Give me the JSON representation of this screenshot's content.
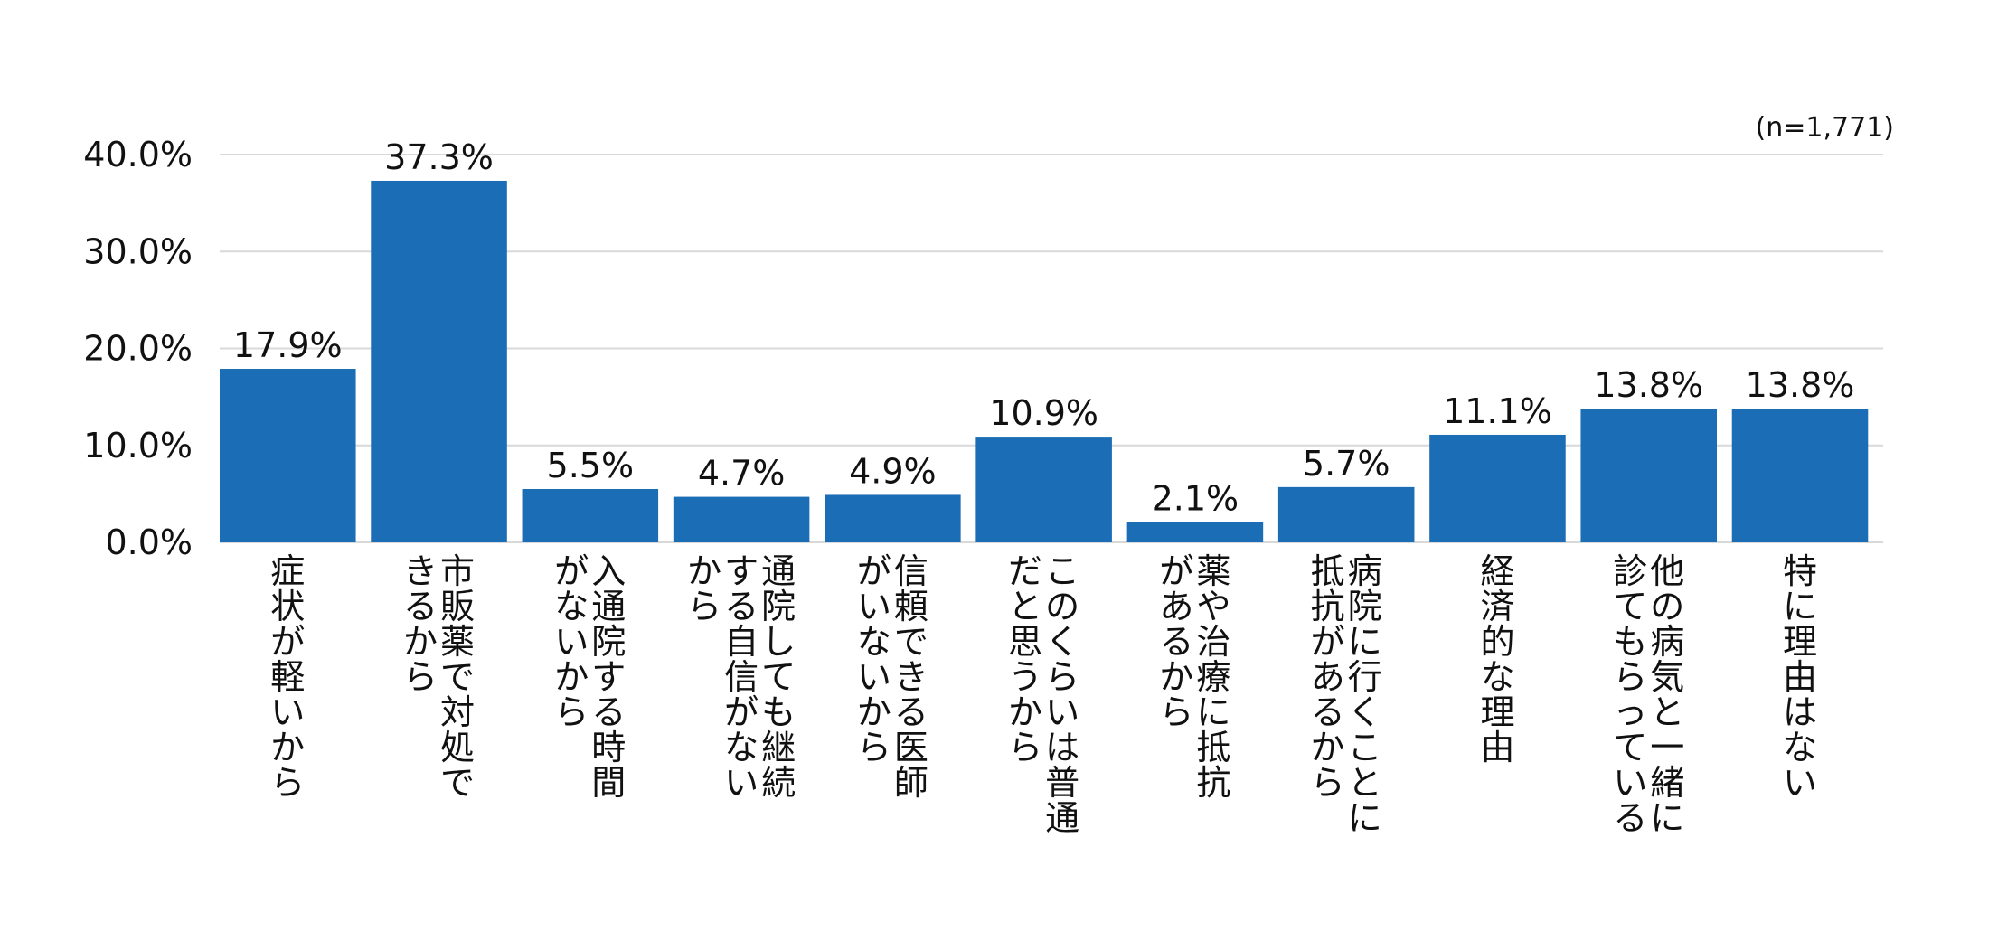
{
  "chart_data": {
    "type": "bar",
    "note": "(n=1,771)",
    "categories": [
      "症状が軽いから",
      "市販薬で対処できるから",
      "入通院する時間がないから",
      "通院しても継続する自信がないから",
      "信頼できる医師がいないから",
      "このくらいは普通だと思うから",
      "薬や治療に抵抗があるから",
      "病院に行くことに抵抗があるから",
      "経済的な理由",
      "他の病気と一緒に診てもらっている",
      "特に理由はない"
    ],
    "category_columns": [
      [
        "症状が軽いから"
      ],
      [
        "市販薬で対処で",
        "きるから"
      ],
      [
        "入通院する時間",
        "がないから"
      ],
      [
        "通院しても継続",
        "する自信がない",
        "から"
      ],
      [
        "信頼できる医師",
        "がいないから"
      ],
      [
        "このくらいは普通",
        "だと思うから"
      ],
      [
        "薬や治療に抵抗",
        "があるから"
      ],
      [
        "病院に行くことに",
        "抵抗があるから"
      ],
      [
        "経済的な理由"
      ],
      [
        "他の病気と一緒に",
        "診てもらっている"
      ],
      [
        "特に理由はない"
      ]
    ],
    "values": [
      17.9,
      37.3,
      5.5,
      4.7,
      4.9,
      10.9,
      2.1,
      5.7,
      11.1,
      13.8,
      13.8
    ],
    "value_labels": [
      "17.9%",
      "37.3%",
      "5.5%",
      "4.7%",
      "4.9%",
      "10.9%",
      "2.1%",
      "5.7%",
      "11.1%",
      "13.8%",
      "13.8%"
    ],
    "y_ticks": [
      0,
      10,
      20,
      30,
      40
    ],
    "y_tick_labels": [
      "0.0%",
      "10.0%",
      "20.0%",
      "30.0%",
      "40.0%"
    ],
    "ylim": [
      0,
      40
    ],
    "grid": true,
    "colors": {
      "bar": "#1b6db5",
      "grid": "#d9d9d9"
    }
  }
}
